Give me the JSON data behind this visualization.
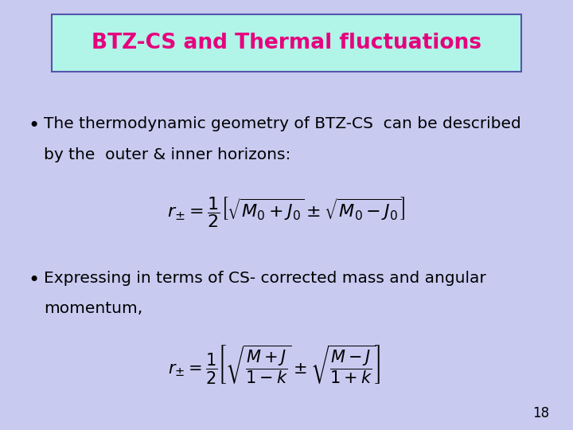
{
  "background_color": "#c8caf0",
  "title": "BTZ-CS and Thermal fluctuations",
  "title_color": "#e6007e",
  "title_bg_color": "#b0f5e8",
  "title_border_color": "#5555aa",
  "bullet1_line1": "The thermodynamic geometry of BTZ-CS  can be described",
  "bullet1_line2": "by the  outer & inner horizons:",
  "eq1": "$r_{\\pm} = \\dfrac{1}{2}\\left[\\sqrt{M_0 + J_0} \\pm \\sqrt{M_0 - J_0}\\right]$",
  "bullet2_line1": "Expressing in terms of CS- corrected mass and angular",
  "bullet2_line2": "momentum,",
  "eq2": "$r_{\\pm} = \\dfrac{1}{2}\\left[\\sqrt{\\dfrac{M+J}{1-k}} \\pm \\sqrt{\\dfrac{M-J}{1+k}}\\right]$",
  "page_number": "18",
  "text_color": "#000000",
  "font_size_bullet": 14.5,
  "font_size_eq1": 16,
  "font_size_eq2": 15,
  "font_size_title": 19,
  "font_size_page": 12
}
